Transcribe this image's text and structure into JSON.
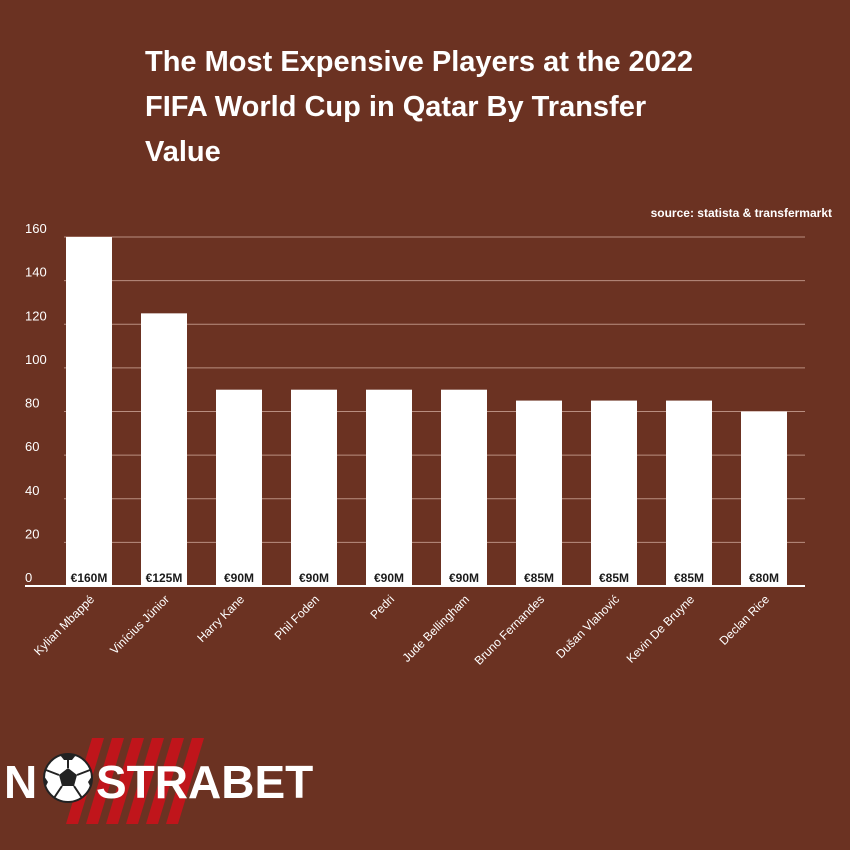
{
  "header": {
    "title": "The Most Expensive Players at the 2022 FIFA World Cup in Qatar By Transfer Value",
    "source": "source: statista & transfermarkt"
  },
  "brand": {
    "logo_text": "NOSTRABET",
    "logo_color": "#ffffff",
    "stripe_color": "#c0151b"
  },
  "colors": {
    "background": "#6b3222",
    "bar": "#ffffff",
    "grid": "#b98e80"
  },
  "chart_data": {
    "type": "bar",
    "categories": [
      "Kylian Mbappé",
      "Vinícius Júnior",
      "Harry Kane",
      "Phil Foden",
      "Pedri",
      "Jude Bellingham",
      "Bruno Fernandes",
      "Dušan Vlahović",
      "Kevin De Bruyne",
      "Declan Rice"
    ],
    "values": [
      160,
      125,
      90,
      90,
      90,
      90,
      85,
      85,
      85,
      80
    ],
    "data_labels": [
      "€160M",
      "€125M",
      "€90M",
      "€90M",
      "€90M",
      "€90M",
      "€85M",
      "€85M",
      "€85M",
      "€80M"
    ],
    "yticks": [
      0,
      20,
      40,
      60,
      80,
      100,
      120,
      140,
      160
    ],
    "ylim": [
      0,
      160
    ],
    "grid": true,
    "xlabel": "",
    "ylabel": ""
  }
}
